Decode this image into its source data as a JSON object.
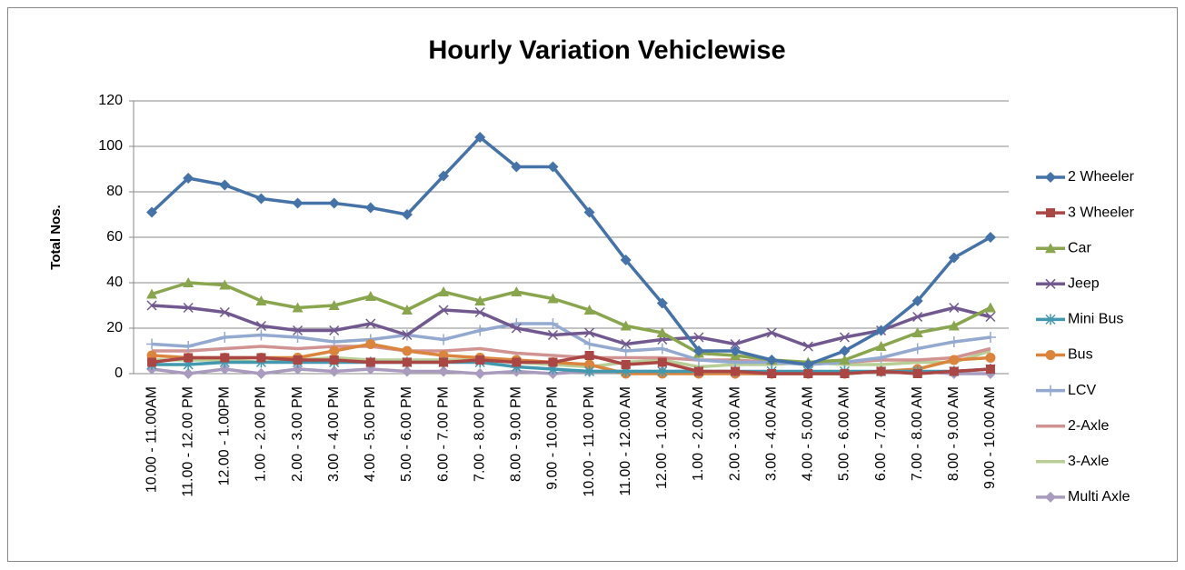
{
  "chart_data": {
    "type": "line",
    "title": "Hourly Variation Vehiclewise",
    "y_label": "Total Nos.",
    "categories": [
      "10.00 - 11.00AM",
      "11.00 - 12.00 PM",
      "12.00 - 1.00PM",
      "1.00 - 2.00 PM",
      "2.00 - 3.00 PM",
      "3.00 - 4.00 PM",
      "4.00 - 5.00 PM",
      "5.00 - 6.00 PM",
      "6.00 - 7.00 PM",
      "7.00 - 8.00 PM",
      "8.00 - 9.00 PM",
      "9.00 - 10.00 PM",
      "10.00 - 11.00 PM",
      "11.00 - 12.00 AM",
      "12.00 - 1.00 AM",
      "1.00 - 2.00 AM",
      "2.00 - 3.00 AM",
      "3.00 - 4.00 AM",
      "4.00 - 5.00 AM",
      "5.00 - 6.00 AM",
      "6.00 - 7.00 AM",
      "7.00 - 8.00 AM",
      "8.00 - 9.00 AM",
      "9.00 - 10.00 AM"
    ],
    "series": [
      {
        "name": "2 Wheeler",
        "color": "#4572a7",
        "marker": "diamond",
        "values": [
          71,
          86,
          83,
          77,
          75,
          75,
          73,
          70,
          87,
          104,
          91,
          91,
          71,
          50,
          31,
          10,
          10,
          6,
          4,
          10,
          19,
          32,
          51,
          60
        ]
      },
      {
        "name": "3 Wheeler",
        "color": "#aa4643",
        "marker": "square",
        "values": [
          5,
          7,
          7,
          7,
          6,
          6,
          5,
          5,
          5,
          6,
          5,
          5,
          8,
          4,
          5,
          1,
          1,
          0,
          0,
          0,
          1,
          0,
          1,
          2
        ]
      },
      {
        "name": "Car",
        "color": "#89a54e",
        "marker": "triangle",
        "values": [
          35,
          40,
          39,
          32,
          29,
          30,
          34,
          28,
          36,
          32,
          36,
          33,
          28,
          21,
          18,
          9,
          8,
          6,
          5,
          6,
          12,
          18,
          21,
          29
        ]
      },
      {
        "name": "Jeep",
        "color": "#71588f",
        "marker": "x",
        "values": [
          30,
          29,
          27,
          21,
          19,
          19,
          22,
          17,
          28,
          27,
          20,
          17,
          18,
          13,
          15,
          16,
          13,
          18,
          12,
          16,
          19,
          25,
          29,
          25
        ]
      },
      {
        "name": "Mini Bus",
        "color": "#4198af",
        "marker": "star",
        "values": [
          4,
          4,
          5,
          5,
          5,
          5,
          5,
          5,
          5,
          5,
          3,
          2,
          1,
          1,
          1,
          1,
          1,
          1,
          1,
          1,
          1,
          1,
          1,
          2
        ]
      },
      {
        "name": "Bus",
        "color": "#db843d",
        "marker": "circle",
        "values": [
          8,
          7,
          7,
          7,
          7,
          10,
          13,
          10,
          8,
          7,
          6,
          5,
          4,
          0,
          0,
          0,
          0,
          0,
          0,
          0,
          1,
          2,
          6,
          7
        ]
      },
      {
        "name": "LCV",
        "color": "#93a9cf",
        "marker": "plus",
        "values": [
          13,
          12,
          16,
          17,
          16,
          14,
          15,
          17,
          15,
          19,
          22,
          22,
          13,
          10,
          11,
          6,
          5,
          5,
          4,
          5,
          7,
          11,
          14,
          16
        ]
      },
      {
        "name": "2-Axle",
        "color": "#d19392",
        "marker": "none",
        "values": [
          10,
          10,
          11,
          12,
          11,
          12,
          12,
          10,
          10,
          11,
          9,
          8,
          7,
          7,
          7,
          6,
          6,
          5,
          5,
          5,
          6,
          6,
          7,
          11
        ]
      },
      {
        "name": "3-Axle",
        "color": "#b9cd96",
        "marker": "none",
        "values": [
          6,
          6,
          6,
          5,
          6,
          7,
          6,
          6,
          6,
          6,
          5,
          4,
          3,
          5,
          6,
          3,
          4,
          4,
          5,
          4,
          4,
          5,
          5,
          10
        ]
      },
      {
        "name": "Multi Axle",
        "color": "#a99bbd",
        "marker": "diamond",
        "values": [
          2,
          0,
          2,
          0,
          2,
          1,
          2,
          1,
          1,
          0,
          1,
          0,
          1,
          1,
          1,
          1,
          0,
          0,
          0,
          0,
          1,
          1,
          0,
          0
        ]
      }
    ],
    "ylim": [
      0,
      120
    ],
    "yticks": [
      0,
      20,
      40,
      60,
      80,
      100,
      120
    ],
    "grid": true,
    "legend": "right"
  }
}
